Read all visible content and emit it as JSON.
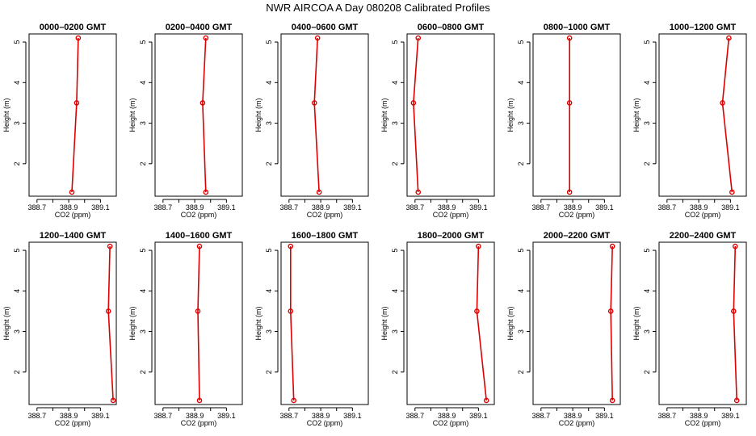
{
  "figure": {
    "title": "NWR AIRCOA A  Day 080208  Calibrated Profiles"
  },
  "chart_data": [
    {
      "type": "line",
      "title": "0000–0200 GMT",
      "xlabel": "CO2 (ppm)",
      "ylabel": "Height (m)",
      "x": [
        388.92,
        388.95,
        388.96
      ],
      "y": [
        1.3,
        3.5,
        5.1
      ],
      "xlim": [
        388.65,
        389.2
      ],
      "ylim": [
        1.2,
        5.2
      ],
      "xticks": [
        "388.7",
        "388.9",
        "389.1"
      ],
      "yticks": [
        "2",
        "3",
        "4",
        "5"
      ]
    },
    {
      "type": "line",
      "title": "0200–0400 GMT",
      "xlabel": "CO2 (ppm)",
      "ylabel": "Height (m)",
      "x": [
        388.97,
        388.95,
        388.97
      ],
      "y": [
        1.3,
        3.5,
        5.1
      ],
      "xlim": [
        388.65,
        389.2
      ],
      "ylim": [
        1.2,
        5.2
      ],
      "xticks": [
        "388.7",
        "388.9",
        "389.1"
      ],
      "yticks": [
        "2",
        "3",
        "4",
        "5"
      ]
    },
    {
      "type": "line",
      "title": "0400–0600 GMT",
      "xlabel": "CO2 (ppm)",
      "ylabel": "Height (m)",
      "x": [
        388.89,
        388.86,
        388.88
      ],
      "y": [
        1.3,
        3.5,
        5.1
      ],
      "xlim": [
        388.65,
        389.2
      ],
      "ylim": [
        1.2,
        5.2
      ],
      "xticks": [
        "388.7",
        "388.9",
        "389.1"
      ],
      "yticks": [
        "2",
        "3",
        "4",
        "5"
      ]
    },
    {
      "type": "line",
      "title": "0600–0800 GMT",
      "xlabel": "CO2 (ppm)",
      "ylabel": "Height (m)",
      "x": [
        388.72,
        388.69,
        388.72
      ],
      "y": [
        1.3,
        3.5,
        5.1
      ],
      "xlim": [
        388.65,
        389.2
      ],
      "ylim": [
        1.2,
        5.2
      ],
      "xticks": [
        "388.7",
        "388.9",
        "389.1"
      ],
      "yticks": [
        "2",
        "3",
        "4",
        "5"
      ]
    },
    {
      "type": "line",
      "title": "0800–1000 GMT",
      "xlabel": "CO2 (ppm)",
      "ylabel": "Height (m)",
      "x": [
        388.88,
        388.88,
        388.88
      ],
      "y": [
        1.3,
        3.5,
        5.1
      ],
      "xlim": [
        388.65,
        389.2
      ],
      "ylim": [
        1.2,
        5.2
      ],
      "xticks": [
        "388.7",
        "388.9",
        "389.1"
      ],
      "yticks": [
        "2",
        "3",
        "4",
        "5"
      ]
    },
    {
      "type": "line",
      "title": "1000–1200 GMT",
      "xlabel": "CO2 (ppm)",
      "ylabel": "Height (m)",
      "x": [
        389.11,
        389.05,
        389.09
      ],
      "y": [
        1.3,
        3.5,
        5.1
      ],
      "xlim": [
        388.65,
        389.2
      ],
      "ylim": [
        1.2,
        5.2
      ],
      "xticks": [
        "388.7",
        "388.9",
        "389.1"
      ],
      "yticks": [
        "2",
        "3",
        "4",
        "5"
      ]
    },
    {
      "type": "line",
      "title": "1200–1400 GMT",
      "xlabel": "CO2 (ppm)",
      "ylabel": "Height (m)",
      "x": [
        389.18,
        389.15,
        389.16
      ],
      "y": [
        1.3,
        3.5,
        5.1
      ],
      "xlim": [
        388.65,
        389.2
      ],
      "ylim": [
        1.2,
        5.2
      ],
      "xticks": [
        "388.7",
        "388.9",
        "389.1"
      ],
      "yticks": [
        "2",
        "3",
        "4",
        "5"
      ]
    },
    {
      "type": "line",
      "title": "1400–1600 GMT",
      "xlabel": "CO2 (ppm)",
      "ylabel": "Height (m)",
      "x": [
        388.93,
        388.92,
        388.93
      ],
      "y": [
        1.3,
        3.5,
        5.1
      ],
      "xlim": [
        388.65,
        389.2
      ],
      "ylim": [
        1.2,
        5.2
      ],
      "xticks": [
        "388.7",
        "388.9",
        "389.1"
      ],
      "yticks": [
        "2",
        "3",
        "4",
        "5"
      ]
    },
    {
      "type": "line",
      "title": "1600–1800 GMT",
      "xlabel": "CO2 (ppm)",
      "ylabel": "Height (m)",
      "x": [
        388.73,
        388.71,
        388.71
      ],
      "y": [
        1.3,
        3.5,
        5.1
      ],
      "xlim": [
        388.65,
        389.2
      ],
      "ylim": [
        1.2,
        5.2
      ],
      "xticks": [
        "388.7",
        "388.9",
        "389.1"
      ],
      "yticks": [
        "2",
        "3",
        "4",
        "5"
      ]
    },
    {
      "type": "line",
      "title": "1800–2000 GMT",
      "xlabel": "CO2 (ppm)",
      "ylabel": "Height (m)",
      "x": [
        389.15,
        389.09,
        389.1
      ],
      "y": [
        1.3,
        3.5,
        5.1
      ],
      "xlim": [
        388.65,
        389.2
      ],
      "ylim": [
        1.2,
        5.2
      ],
      "xticks": [
        "388.7",
        "388.9",
        "389.1"
      ],
      "yticks": [
        "2",
        "3",
        "4",
        "5"
      ]
    },
    {
      "type": "line",
      "title": "2000–2200 GMT",
      "xlabel": "CO2 (ppm)",
      "ylabel": "Height (m)",
      "x": [
        389.15,
        389.14,
        389.15
      ],
      "y": [
        1.3,
        3.5,
        5.1
      ],
      "xlim": [
        388.65,
        389.2
      ],
      "ylim": [
        1.2,
        5.2
      ],
      "xticks": [
        "388.7",
        "388.9",
        "389.1"
      ],
      "yticks": [
        "2",
        "3",
        "4",
        "5"
      ]
    },
    {
      "type": "line",
      "title": "2200–2400 GMT",
      "xlabel": "CO2 (ppm)",
      "ylabel": "Height (m)",
      "x": [
        389.14,
        389.12,
        389.13
      ],
      "y": [
        1.3,
        3.5,
        5.1
      ],
      "xlim": [
        388.65,
        389.2
      ],
      "ylim": [
        1.2,
        5.2
      ],
      "xticks": [
        "388.7",
        "388.9",
        "389.1"
      ],
      "yticks": [
        "2",
        "3",
        "4",
        "5"
      ]
    }
  ]
}
